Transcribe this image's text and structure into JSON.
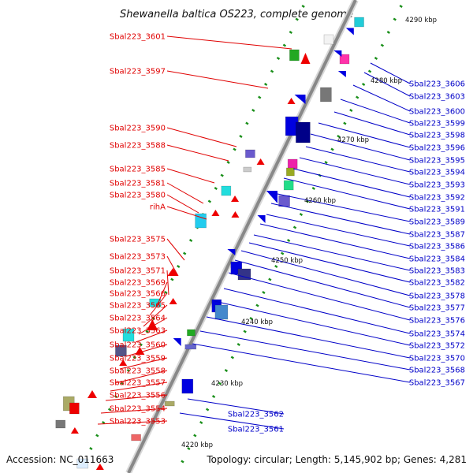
{
  "title": "Shewanella baltica OS223, complete genome",
  "accession": "Accession: NC_011663",
  "topology": "Topology: circular; Length: 5,145,902 bp; Genes: 4,281",
  "colors": {
    "forward_label": "#e00000",
    "reverse_label": "#0000c8",
    "backbone": "#888888",
    "tick": "#1a8f1a"
  },
  "kbp_ticks": [
    "4290 kbp",
    "4280 kbp",
    "4270 kbp",
    "4260 kbp",
    "4250 kbp",
    "4240 kbp",
    "4230 kbp",
    "4220 kbp"
  ],
  "left_labels": [
    "Sbal223_3601",
    "Sbal223_3597",
    "Sbal223_3590",
    "Sbal223_3588",
    "Sbal223_3585",
    "Sbal223_3581",
    "Sbal223_3580",
    "rihA",
    "Sbal223_3575",
    "Sbal223_3573",
    "Sbal223_3571",
    "Sbal223_3569",
    "Sbal223_3566",
    "Sbal223_3565",
    "Sbal223_3564",
    "Sbal223_3563",
    "Sbal223_3560",
    "Sbal223_3559",
    "Sbal223_3558",
    "Sbal223_3557",
    "Sbal223_3556",
    "Sbal223_3554",
    "Sbal223_3553"
  ],
  "right_labels": [
    "Sbal223_3606",
    "Sbal223_3603",
    "Sbal223_3600",
    "Sbal223_3599",
    "Sbal223_3598",
    "Sbal223_3596",
    "Sbal223_3595",
    "Sbal223_3594",
    "Sbal223_3593",
    "Sbal223_3592",
    "Sbal223_3591",
    "Sbal223_3589",
    "Sbal223_3587",
    "Sbal223_3586",
    "Sbal223_3584",
    "Sbal223_3583",
    "Sbal223_3582",
    "Sbal223_3578",
    "Sbal223_3577",
    "Sbal223_3576",
    "Sbal223_3574",
    "Sbal223_3572",
    "Sbal223_3570",
    "Sbal223_3568",
    "Sbal223_3567",
    "Sbal223_3562",
    "Sbal223_3561"
  ]
}
